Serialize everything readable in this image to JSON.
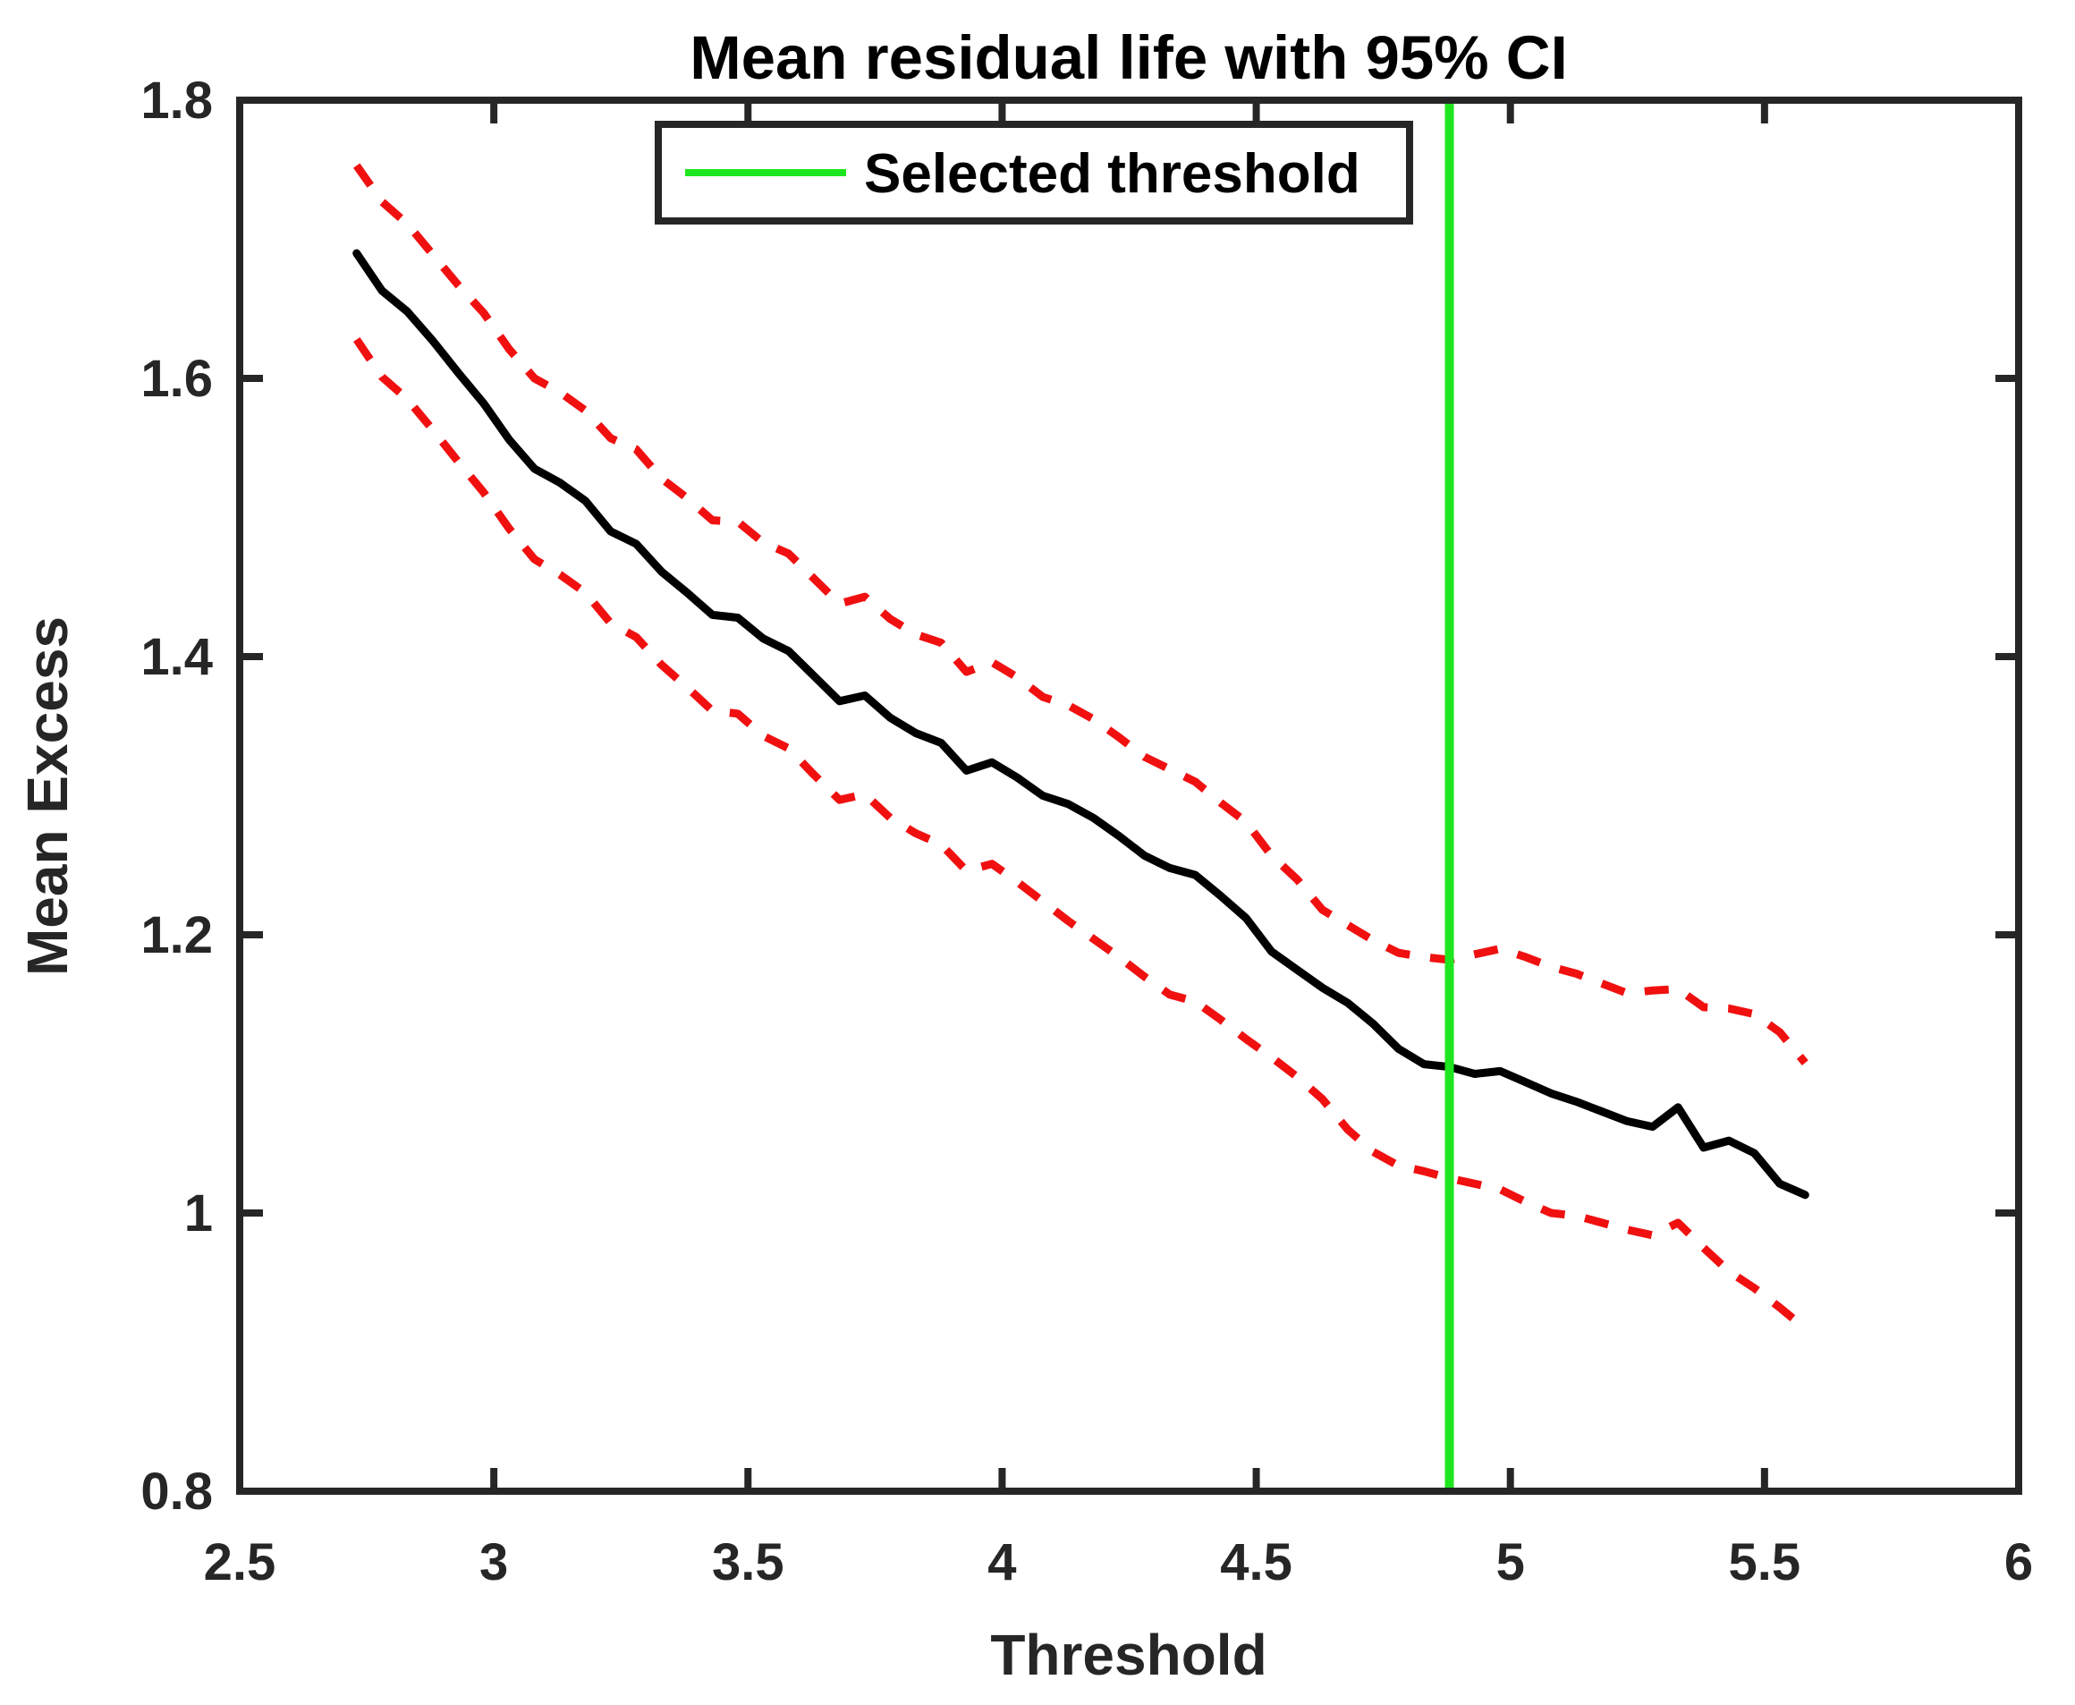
{
  "figure": {
    "title": "Mean residual life with 95% CI",
    "xlabel": "Threshold",
    "ylabel": "Mean Excess"
  },
  "legend": {
    "items": [
      {
        "label": "Selected threshold",
        "color": "#1ee61e",
        "line_style": "solid"
      }
    ]
  },
  "colors": {
    "mean_line": "#000000",
    "ci_line": "#f01010",
    "threshold_line": "#1ee61e",
    "axis": "#262626",
    "background": "#ffffff"
  },
  "chart_data": {
    "type": "line",
    "title": "Mean residual life with 95% CI",
    "xlabel": "Threshold",
    "ylabel": "Mean Excess",
    "xlim": [
      2.5,
      6
    ],
    "ylim": [
      0.8,
      1.8
    ],
    "xticks": [
      2.5,
      3,
      3.5,
      4,
      4.5,
      5,
      5.5,
      6
    ],
    "xtick_labels": [
      "2.5",
      "3",
      "3.5",
      "4",
      "4.5",
      "5",
      "5.5",
      "6"
    ],
    "yticks": [
      0.8,
      1,
      1.2,
      1.4,
      1.6,
      1.8
    ],
    "ytick_labels": [
      "0.8",
      "1",
      "1.2",
      "1.4",
      "1.6",
      "1.8"
    ],
    "grid": false,
    "legend_position": "north",
    "selected_threshold_x": 4.88,
    "x": [
      2.73,
      2.78,
      2.83,
      2.88,
      2.93,
      2.98,
      3.03,
      3.08,
      3.13,
      3.18,
      3.23,
      3.28,
      3.33,
      3.38,
      3.43,
      3.48,
      3.53,
      3.58,
      3.63,
      3.68,
      3.73,
      3.78,
      3.83,
      3.88,
      3.93,
      3.98,
      4.03,
      4.08,
      4.13,
      4.18,
      4.23,
      4.28,
      4.33,
      4.38,
      4.43,
      4.48,
      4.53,
      4.58,
      4.63,
      4.68,
      4.73,
      4.78,
      4.83,
      4.88,
      4.93,
      4.98,
      5.03,
      5.08,
      5.13,
      5.18,
      5.23,
      5.28,
      5.33,
      5.38,
      5.43,
      5.48,
      5.53,
      5.58
    ],
    "series": [
      {
        "name": "mean_excess",
        "color": "#000000",
        "style": "solid",
        "values": [
          1.69,
          1.663,
          1.648,
          1.627,
          1.604,
          1.582,
          1.556,
          1.535,
          1.525,
          1.512,
          1.49,
          1.481,
          1.461,
          1.446,
          1.43,
          1.428,
          1.413,
          1.404,
          1.386,
          1.368,
          1.372,
          1.356,
          1.345,
          1.338,
          1.318,
          1.324,
          1.313,
          1.3,
          1.294,
          1.284,
          1.271,
          1.257,
          1.248,
          1.243,
          1.228,
          1.212,
          1.188,
          1.175,
          1.162,
          1.151,
          1.136,
          1.118,
          1.107,
          1.105,
          1.1,
          1.102,
          1.094,
          1.086,
          1.08,
          1.073,
          1.066,
          1.062,
          1.076,
          1.047,
          1.052,
          1.043,
          1.021,
          1.013
        ]
      },
      {
        "name": "ci_upper_95",
        "color": "#f01010",
        "style": "dashed",
        "values": [
          1.753,
          1.727,
          1.711,
          1.689,
          1.667,
          1.647,
          1.621,
          1.6,
          1.59,
          1.577,
          1.557,
          1.549,
          1.528,
          1.514,
          1.498,
          1.497,
          1.482,
          1.474,
          1.456,
          1.438,
          1.443,
          1.427,
          1.416,
          1.41,
          1.389,
          1.396,
          1.385,
          1.371,
          1.365,
          1.355,
          1.342,
          1.328,
          1.319,
          1.31,
          1.295,
          1.281,
          1.257,
          1.24,
          1.218,
          1.207,
          1.196,
          1.187,
          1.184,
          1.182,
          1.186,
          1.19,
          1.184,
          1.177,
          1.172,
          1.165,
          1.158,
          1.16,
          1.161,
          1.148,
          1.147,
          1.143,
          1.13,
          1.108
        ]
      },
      {
        "name": "ci_lower_95",
        "color": "#f01010",
        "style": "dashed",
        "values": [
          1.628,
          1.601,
          1.585,
          1.563,
          1.54,
          1.518,
          1.492,
          1.47,
          1.459,
          1.446,
          1.424,
          1.414,
          1.394,
          1.378,
          1.361,
          1.359,
          1.343,
          1.334,
          1.315,
          1.297,
          1.301,
          1.284,
          1.273,
          1.265,
          1.246,
          1.251,
          1.238,
          1.224,
          1.21,
          1.197,
          1.184,
          1.17,
          1.157,
          1.152,
          1.139,
          1.125,
          1.112,
          1.098,
          1.082,
          1.06,
          1.044,
          1.034,
          1.03,
          1.025,
          1.021,
          1.017,
          1.008,
          1.0,
          0.998,
          0.993,
          0.988,
          0.984,
          0.993,
          0.975,
          0.958,
          0.946,
          0.932,
          0.917
        ]
      }
    ]
  }
}
